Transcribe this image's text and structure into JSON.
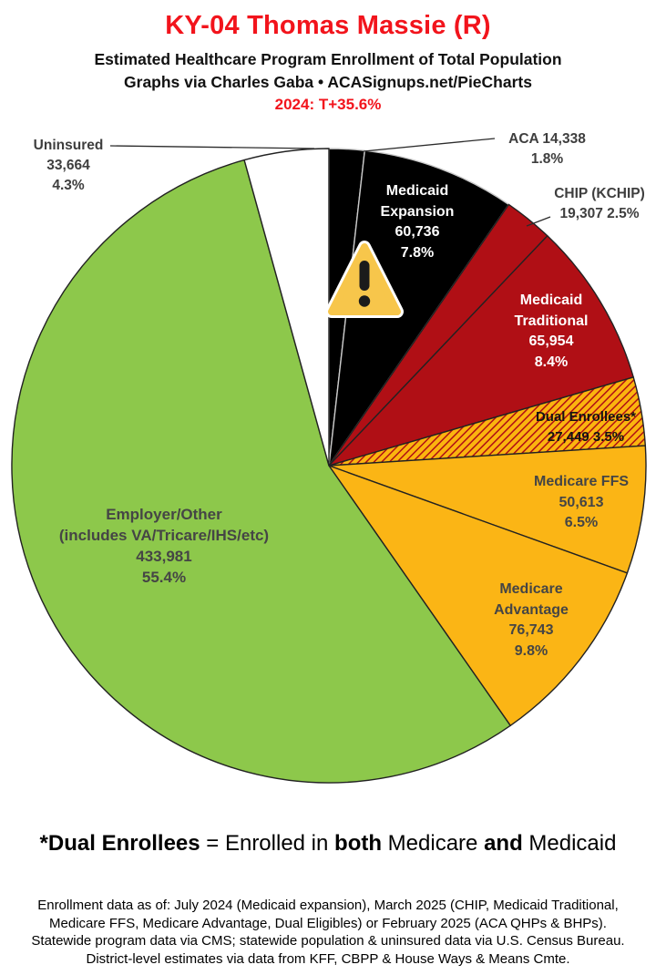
{
  "header": {
    "title": "KY-04 Thomas Massie (R)",
    "subtitle": "Estimated Healthcare Program Enrollment of Total Population",
    "credit": "Graphs via Charles Gaba   •   ACASignups.net/PieCharts",
    "tagline": "2024: T+35.6%",
    "title_color": "#F2141C"
  },
  "chart_data": {
    "type": "pie",
    "title": "Estimated Healthcare Program Enrollment of Total Population",
    "legend_position": "none",
    "start_angle_deg": 0,
    "direction": "clockwise",
    "slices": [
      {
        "name": "ACA",
        "value": 14338,
        "percent": 1.8,
        "color": "#000000",
        "stroke": "#cccccc",
        "label_lines": [
          "ACA 14,338",
          "1.8%"
        ],
        "label_placement": "outside-callout"
      },
      {
        "name": "Medicaid Expansion",
        "value": 60736,
        "percent": 7.8,
        "color": "#000000",
        "stroke": "#c9c9c9",
        "label_lines": [
          "Medicaid",
          "Expansion",
          "60,736",
          "7.8%"
        ],
        "label_placement": "inside"
      },
      {
        "name": "CHIP (KCHIP)",
        "value": 19307,
        "percent": 2.5,
        "color": "#B00F15",
        "stroke": "#222222",
        "label_lines": [
          "CHIP (KCHIP)",
          "19,307 2.5%"
        ],
        "label_placement": "outside-callout"
      },
      {
        "name": "Medicaid Traditional",
        "value": 65954,
        "percent": 8.4,
        "color": "#B00F15",
        "stroke": "#222222",
        "label_lines": [
          "Medicaid",
          "Traditional",
          "65,954",
          "8.4%"
        ],
        "label_placement": "inside"
      },
      {
        "name": "Dual Enrollees",
        "value": 27449,
        "percent": 3.5,
        "color": "hatch",
        "stroke": "#222222",
        "label_lines": [
          "Dual Enrollees*",
          "27,449 3.5%"
        ],
        "label_placement": "inside"
      },
      {
        "name": "Medicare FFS",
        "value": 50613,
        "percent": 6.5,
        "color": "#FBB515",
        "stroke": "#222222",
        "label_lines": [
          "Medicare FFS",
          "50,613",
          "6.5%"
        ],
        "label_placement": "inside"
      },
      {
        "name": "Medicare Advantage",
        "value": 76743,
        "percent": 9.8,
        "color": "#FBB515",
        "stroke": "#222222",
        "label_lines": [
          "Medicare",
          "Advantage",
          "76,743",
          "9.8%"
        ],
        "label_placement": "inside"
      },
      {
        "name": "Employer/Other",
        "value": 433981,
        "percent": 55.4,
        "color": "#8DC84B",
        "stroke": "#222222",
        "label_lines": [
          "Employer/Other",
          "(includes VA/Tricare/IHS/etc)",
          "433,981",
          "55.4%"
        ],
        "label_placement": "inside"
      },
      {
        "name": "Uninsured",
        "value": 33664,
        "percent": 4.3,
        "color": "#ffffff",
        "stroke": "#222222",
        "label_lines": [
          "Uninsured",
          "33,664",
          "4.3%"
        ],
        "label_placement": "outside-callout"
      }
    ],
    "hatch": {
      "bg": "#FBB40F",
      "stripe": "#B00F15"
    },
    "warning_icon": {
      "fill": "#F7C64B",
      "mark": "#1b1b1b",
      "outline": "#ffffff"
    }
  },
  "footnote": {
    "parts": [
      {
        "text": "*Dual Enrollees"
      },
      {
        "text": " = Enrolled in "
      },
      {
        "text": "both"
      },
      {
        "text": " Medicare "
      },
      {
        "text": "and"
      },
      {
        "text": " Medicaid"
      }
    ]
  },
  "footer": {
    "lines": [
      "Enrollment data as of: July 2024 (Medicaid expansion), March 2025 (CHIP, Medicaid Traditional,",
      "Medicare FFS, Medicare Advantage, Dual Eligibles) or February 2025 (ACA QHPs & BHPs).",
      "Statewide program data via CMS; statewide population & uninsured data via U.S. Census Bureau.",
      "District-level estimates via data from KFF, CBPP & House Ways & Means Cmte."
    ]
  }
}
